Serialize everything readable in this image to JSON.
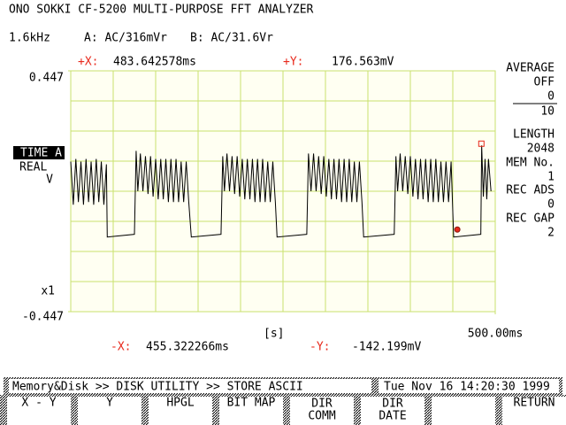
{
  "header": {
    "title": "ONO SOKKI CF-5200 MULTI-PURPOSE FFT ANALYZER",
    "settings": [
      "1.6kHz",
      "A: AC/316mVr",
      "B: AC/31.6Vr"
    ]
  },
  "chart_data": {
    "type": "line",
    "channel": "TIME A",
    "mode": "REAL",
    "y_label": "V",
    "scale": "x1",
    "x_label": "[s]",
    "xlim": [
      0,
      500
    ],
    "xticks": [
      {
        "value": 500,
        "label": "500.00ms"
      }
    ],
    "ylim": [
      -0.447,
      0.447
    ],
    "yticks": [
      -0.447,
      0.447
    ],
    "grid": true,
    "x": [
      0,
      3,
      6,
      9,
      12,
      15,
      18,
      21,
      24,
      27,
      30,
      33,
      36,
      39,
      42,
      43,
      75,
      77,
      79,
      82,
      85,
      88,
      91,
      94,
      97,
      100,
      103,
      106,
      109,
      112,
      115,
      118,
      121,
      124,
      127,
      130,
      133,
      136,
      139,
      142,
      177,
      179,
      181,
      184,
      187,
      190,
      193,
      196,
      199,
      202,
      205,
      208,
      211,
      214,
      217,
      220,
      223,
      226,
      229,
      232,
      235,
      238,
      241,
      243,
      278,
      280,
      283,
      286,
      289,
      292,
      295,
      298,
      301,
      304,
      307,
      310,
      313,
      316,
      319,
      322,
      325,
      328,
      331,
      334,
      337,
      340,
      343,
      345,
      381,
      383,
      385,
      388,
      391,
      394,
      397,
      400,
      403,
      406,
      409,
      412,
      415,
      418,
      421,
      424,
      427,
      430,
      433,
      436,
      439,
      442,
      445,
      448,
      451,
      483,
      484,
      486,
      488,
      490,
      492,
      495
    ],
    "series": [
      {
        "color": "#000000",
        "values": [
          0.11,
          -0.05,
          0.12,
          -0.04,
          0.11,
          -0.05,
          0.12,
          -0.04,
          0.11,
          -0.05,
          0.12,
          -0.04,
          0.11,
          -0.05,
          0.1,
          -0.17,
          -0.16,
          0.15,
          0.0,
          0.14,
          0.0,
          0.13,
          -0.01,
          0.13,
          -0.02,
          0.12,
          -0.03,
          0.12,
          -0.03,
          0.12,
          -0.04,
          0.12,
          -0.04,
          0.12,
          -0.04,
          0.11,
          -0.04,
          0.11,
          -0.04,
          -0.17,
          -0.16,
          0.13,
          0.0,
          0.14,
          0.0,
          0.13,
          -0.01,
          0.13,
          -0.02,
          0.12,
          -0.03,
          0.12,
          -0.03,
          0.12,
          -0.04,
          0.12,
          -0.04,
          0.12,
          -0.04,
          0.11,
          -0.04,
          0.11,
          -0.04,
          -0.17,
          -0.16,
          0.14,
          0.0,
          0.14,
          0.0,
          0.13,
          -0.01,
          0.13,
          -0.02,
          0.12,
          -0.03,
          0.12,
          -0.03,
          0.12,
          -0.04,
          0.12,
          -0.04,
          0.12,
          -0.04,
          0.11,
          -0.04,
          0.11,
          -0.04,
          -0.17,
          -0.16,
          0.13,
          0.0,
          0.14,
          0.0,
          0.13,
          -0.01,
          0.13,
          -0.02,
          0.12,
          -0.03,
          0.12,
          -0.03,
          0.12,
          -0.04,
          0.12,
          -0.04,
          0.12,
          -0.04,
          0.11,
          -0.04,
          0.11,
          -0.04,
          0.11,
          -0.17,
          -0.16,
          0.17,
          -0.02,
          0.12,
          -0.03,
          0.12,
          0.0
        ]
      }
    ],
    "cursor_color": "#e8291c",
    "cursors": [
      {
        "x_name": "+X:",
        "x": {
          "value": 483.642578,
          "label": "483.642578ms"
        },
        "y_name": "+Y:",
        "y": {
          "value": 0.176563,
          "label": "176.563mV"
        },
        "marker": "square"
      },
      {
        "x_name": "-X:",
        "x": {
          "value": 455.322266,
          "label": "455.322266ms"
        },
        "y_name": "-Y:",
        "y": {
          "value": -0.142199,
          "label": "-142.199mV"
        },
        "marker": "circle"
      }
    ]
  },
  "side_panel": [
    "AVERAGE",
    "OFF",
    "0",
    "10",
    "LENGTH",
    "2048",
    "MEM No.",
    "1",
    "REC ADS",
    "0",
    "REC GAP",
    "2"
  ],
  "status_bar": {
    "path": "Memory&Disk >> DISK UTILITY >> STORE ASCII",
    "datetime": "Tue Nov 16 14:20:30 1999"
  },
  "function_keys": [
    [
      "X - Y"
    ],
    [
      "Y"
    ],
    [
      "HPGL"
    ],
    [
      "BIT MAP"
    ],
    [
      "DIR",
      "COMM"
    ],
    [
      "DIR",
      "DATE"
    ],
    [],
    [
      "RETURN"
    ]
  ]
}
